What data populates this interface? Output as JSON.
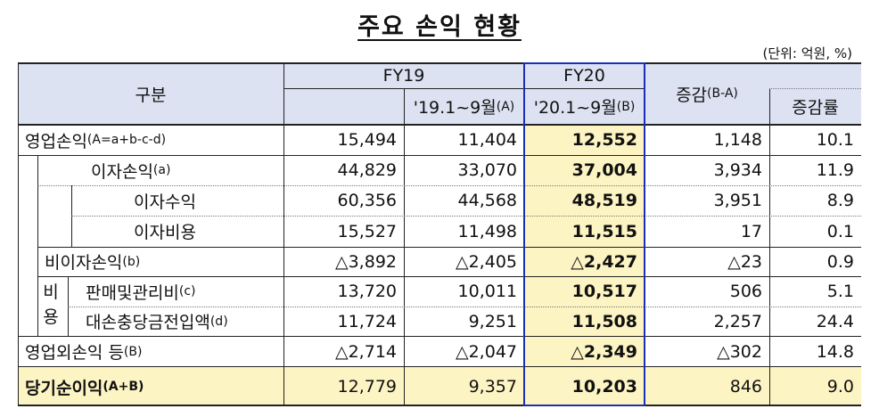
{
  "title": "주요 손익 현황",
  "unit": "(단위: 억원, %)",
  "header": {
    "category": "구분",
    "fy19": "FY19",
    "fy19_period": "'19.1~9월",
    "fy19_period_tag": "(A)",
    "fy20": "FY20",
    "fy20_period": "'20.1~9월",
    "fy20_period_tag": "(B)",
    "change": "증감",
    "change_tag": "(B-A)",
    "change_rate": "증감률"
  },
  "side_label": {
    "char1": "비",
    "char2": "용"
  },
  "rows": [
    {
      "label": "영업손익",
      "tag": "(A=a+b-c-d)",
      "fy19": "15,494",
      "a": "11,404",
      "b": "12,552",
      "diff": "1,148",
      "rate": "10.1"
    },
    {
      "label": "이자손익",
      "tag": "(a)",
      "fy19": "44,829",
      "a": "33,070",
      "b": "37,004",
      "diff": "3,934",
      "rate": "11.9"
    },
    {
      "label": "이자수익",
      "tag": "",
      "fy19": "60,356",
      "a": "44,568",
      "b": "48,519",
      "diff": "3,951",
      "rate": "8.9"
    },
    {
      "label": "이자비용",
      "tag": "",
      "fy19": "15,527",
      "a": "11,498",
      "b": "11,515",
      "diff": "17",
      "rate": "0.1"
    },
    {
      "label": "비이자손익",
      "tag": "(b)",
      "fy19": "△3,892",
      "a": "△2,405",
      "b": "△2,427",
      "diff": "△23",
      "rate": "0.9"
    },
    {
      "label": "판매및관리비",
      "tag": "(c)",
      "fy19": "13,720",
      "a": "10,011",
      "b": "10,517",
      "diff": "506",
      "rate": "5.1"
    },
    {
      "label": "대손충당금전입액",
      "tag": "(d)",
      "fy19": "11,724",
      "a": "9,251",
      "b": "11,508",
      "diff": "2,257",
      "rate": "24.4"
    },
    {
      "label": "영업외손익 등",
      "tag": "(B)",
      "fy19": "△2,714",
      "a": "△2,047",
      "b": "△2,349",
      "diff": "△302",
      "rate": "14.8"
    },
    {
      "label": "당기순이익",
      "tag": "(A+B)",
      "fy19": "12,779",
      "a": "9,357",
      "b": "10,203",
      "diff": "846",
      "rate": "9.0"
    }
  ]
}
